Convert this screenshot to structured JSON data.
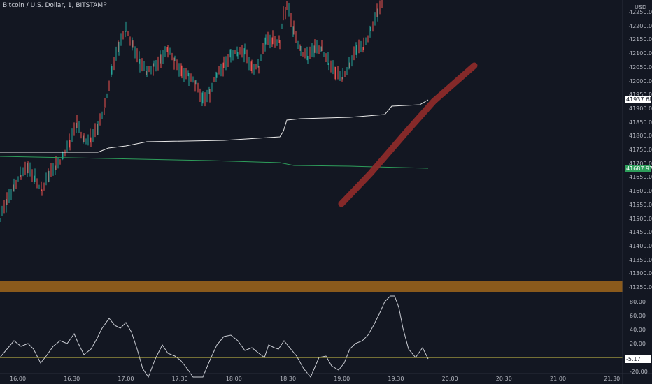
{
  "symbol_title": "Bitcoin / U.S. Dollar, 1, BITSTAMP",
  "currency": "USD",
  "price_axis": [
    "42250.00",
    "42200.00",
    "42150.00",
    "42100.00",
    "42050.00",
    "42000.00",
    "41950.00",
    "41900.00",
    "41850.00",
    "41800.00",
    "41750.00",
    "41700.00",
    "41650.00",
    "41600.00",
    "41550.00",
    "41500.00",
    "41450.00",
    "41400.00",
    "41350.00",
    "41300.00",
    "41250.00"
  ],
  "osc_axis": [
    "80.00",
    "60.00",
    "40.00",
    "20.00",
    "-20.00"
  ],
  "time_axis": [
    "16:00",
    "16:30",
    "17:00",
    "17:30",
    "18:00",
    "18:30",
    "19:00",
    "19:30",
    "20:00",
    "20:30",
    "21:00",
    "21:30"
  ],
  "tags": {
    "white_line": "41937.68",
    "green_line": "41687.97",
    "osc_value": "-5.17"
  },
  "colors": {
    "background": "#131722",
    "up": "#26a69a",
    "down": "#ef5350",
    "annotation_band": "#8a5a1c",
    "drawn_arrow": "#8b2a2a",
    "osc_zero": "#d4c84a"
  }
}
